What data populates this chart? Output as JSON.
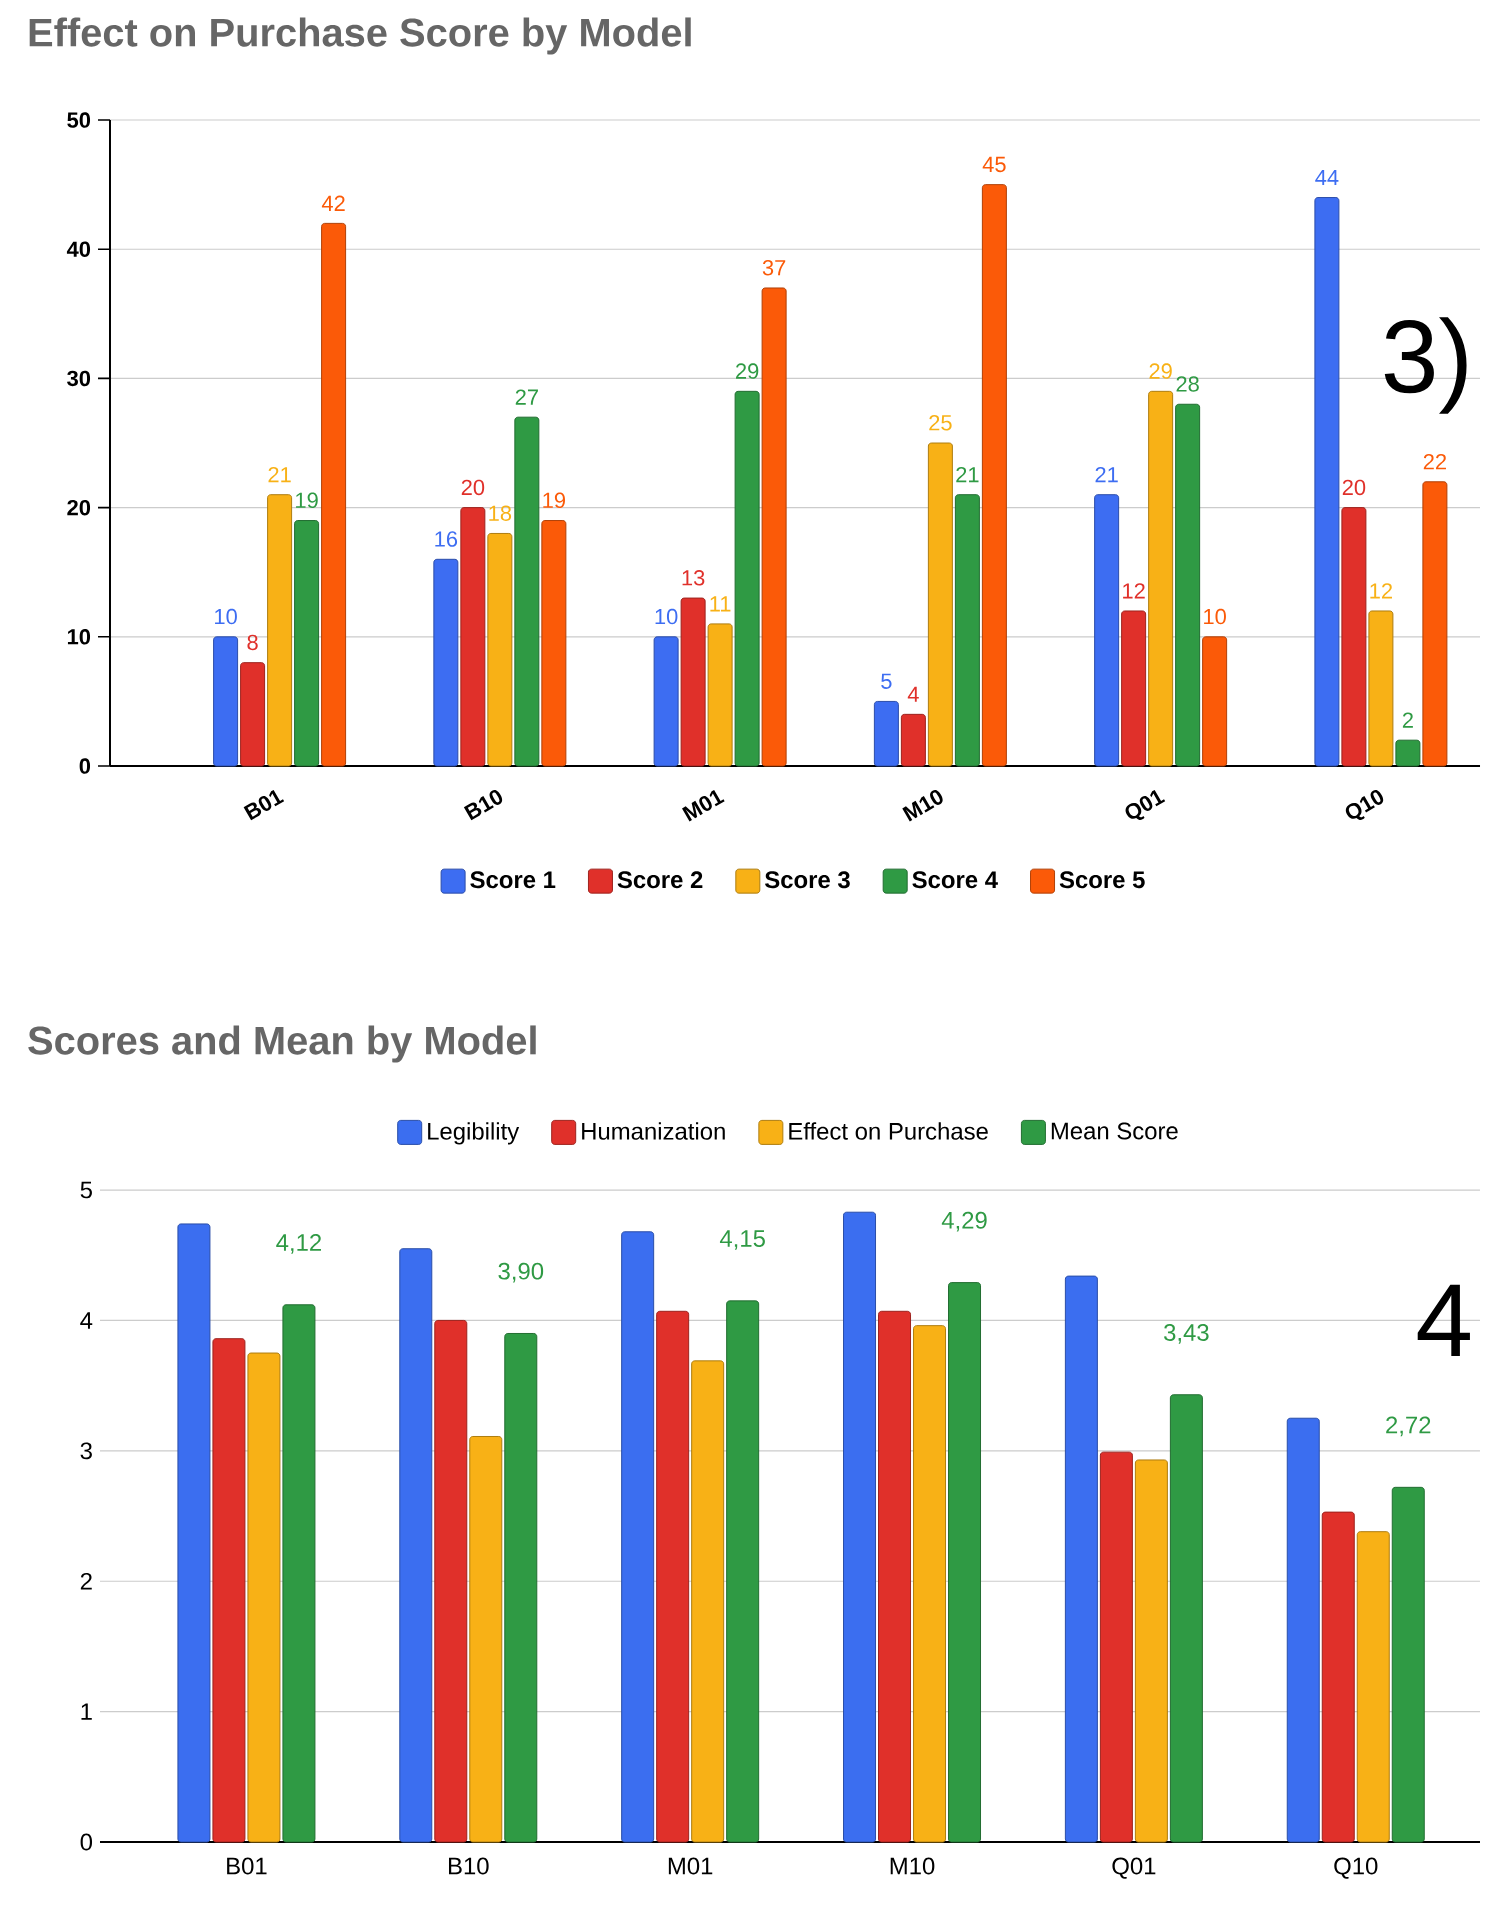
{
  "chart_data": [
    {
      "type": "bar",
      "title": "Effect on Purchase Score by Model",
      "categories": [
        "B01",
        "B10",
        "M01",
        "M10",
        "Q01",
        "Q10"
      ],
      "series": [
        {
          "name": "Score 1",
          "color": "#3d6df2",
          "values": [
            10,
            16,
            10,
            5,
            21,
            44
          ]
        },
        {
          "name": "Score 2",
          "color": "#e0302a",
          "values": [
            8,
            20,
            13,
            4,
            12,
            20
          ]
        },
        {
          "name": "Score 3",
          "color": "#f8b116",
          "values": [
            21,
            18,
            11,
            25,
            29,
            12
          ]
        },
        {
          "name": "Score 4",
          "color": "#2f9a44",
          "values": [
            19,
            27,
            29,
            21,
            28,
            2
          ]
        },
        {
          "name": "Score 5",
          "color": "#fb5a08",
          "values": [
            42,
            19,
            37,
            45,
            10,
            22
          ]
        }
      ],
      "ylim": [
        0,
        50
      ],
      "yticks": [
        0,
        10,
        20,
        30,
        40,
        50
      ],
      "grid": "y",
      "legend": "bottom",
      "data_labels": true,
      "annotations": [
        "3)"
      ]
    },
    {
      "type": "bar",
      "title": "Scores and Mean by Model",
      "categories": [
        "B01",
        "B10",
        "M01",
        "M10",
        "Q01",
        "Q10"
      ],
      "series": [
        {
          "name": "Legibility",
          "color": "#3b6ef0",
          "values": [
            4.74,
            4.55,
            4.68,
            4.83,
            4.34,
            3.25
          ]
        },
        {
          "name": "Humanization",
          "color": "#e0302a",
          "values": [
            3.86,
            4.0,
            4.07,
            4.07,
            2.99,
            2.53
          ]
        },
        {
          "name": "Effect on Purchase",
          "color": "#f8b116",
          "values": [
            3.75,
            3.11,
            3.69,
            3.96,
            2.93,
            2.38
          ]
        },
        {
          "name": "Mean Score",
          "color": "#2f9a44",
          "values": [
            4.12,
            3.9,
            4.15,
            4.29,
            3.43,
            2.72
          ],
          "value_labels": [
            "4,12",
            "3,90",
            "4,15",
            "4,29",
            "3,43",
            "2,72"
          ]
        }
      ],
      "ylim": [
        0,
        5
      ],
      "yticks": [
        0,
        1,
        2,
        3,
        4,
        5
      ],
      "grid": "y",
      "legend": "top",
      "annotations": [
        "4"
      ]
    }
  ]
}
